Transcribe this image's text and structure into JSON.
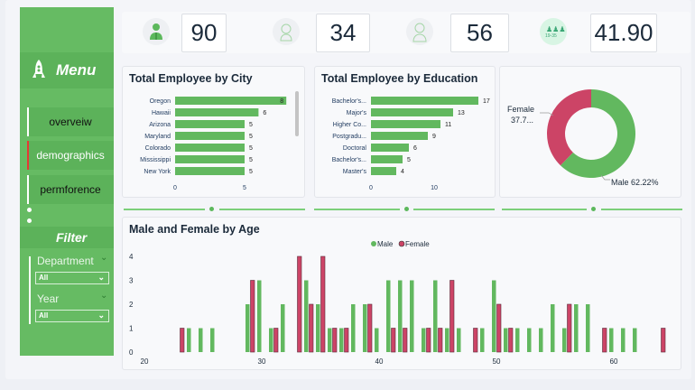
{
  "sidebar": {
    "menu_title": "Menu",
    "nav": [
      {
        "label": "overveiw",
        "active": false
      },
      {
        "label": "demographics",
        "active": true
      },
      {
        "label": "permforence",
        "active": false
      }
    ],
    "filter_title": "Filter",
    "filters": [
      {
        "label": "Department",
        "value": "All"
      },
      {
        "label": "Year",
        "value": "All"
      }
    ]
  },
  "kpis": [
    {
      "icon": "employee-icon",
      "value": "90"
    },
    {
      "icon": "female-icon",
      "value": "34"
    },
    {
      "icon": "male-icon",
      "value": "56"
    },
    {
      "icon": "age-group-icon",
      "value": "41.90",
      "icon_text": "19-35"
    }
  ],
  "colors": {
    "male": "#62b85f",
    "female": "#cc4466",
    "sidebar": "#66bb63",
    "active_marker": "#e53935"
  },
  "chart_data": [
    {
      "type": "bar",
      "orientation": "horizontal",
      "title": "Total Employee by City",
      "categories": [
        "Oregon",
        "Hawaii",
        "Arizona",
        "Maryland",
        "Colorado",
        "Mississippi",
        "New York"
      ],
      "values": [
        8,
        6,
        5,
        5,
        5,
        5,
        5
      ],
      "xticks": [
        "0",
        "5"
      ]
    },
    {
      "type": "bar",
      "orientation": "horizontal",
      "title": "Total Employee by Education",
      "categories": [
        "Bachelor's...",
        "Major's",
        "Higher Co...",
        "Postgradu...",
        "Doctoral",
        "Bachelor's...",
        "Master's"
      ],
      "values": [
        17,
        13,
        11,
        9,
        6,
        5,
        4
      ],
      "xticks": [
        "0",
        "10"
      ]
    },
    {
      "type": "pie",
      "donut": true,
      "slices": [
        {
          "name": "Male",
          "value": 62.22,
          "label": "Male 62.22%"
        },
        {
          "name": "Female",
          "value": 37.78,
          "label_line1": "Female",
          "label_line2": "37.7..."
        }
      ]
    },
    {
      "type": "bar",
      "title": "Male and Female by Age",
      "legend": [
        "Male",
        "Female"
      ],
      "legend_position": "top-center",
      "xticks": [
        "20",
        "30",
        "40",
        "50",
        "60"
      ],
      "yticks": [
        "0",
        "1",
        "2",
        "3",
        "4"
      ],
      "ylim": [
        0,
        4
      ],
      "male": [
        [
          24,
          1
        ],
        [
          25,
          1
        ],
        [
          26,
          1
        ],
        [
          29,
          2
        ],
        [
          30,
          3
        ],
        [
          31,
          1
        ],
        [
          32,
          2
        ],
        [
          34,
          3
        ],
        [
          35,
          2
        ],
        [
          36,
          1
        ],
        [
          37,
          1
        ],
        [
          38,
          2
        ],
        [
          39,
          2
        ],
        [
          40,
          1
        ],
        [
          41,
          3
        ],
        [
          42,
          3
        ],
        [
          43,
          3
        ],
        [
          44,
          1
        ],
        [
          45,
          3
        ],
        [
          46,
          1
        ],
        [
          47,
          1
        ],
        [
          49,
          1
        ],
        [
          50,
          3
        ],
        [
          51,
          1
        ],
        [
          52,
          1
        ],
        [
          53,
          1
        ],
        [
          54,
          1
        ],
        [
          55,
          2
        ],
        [
          56,
          1
        ],
        [
          57,
          2
        ],
        [
          58,
          2
        ],
        [
          60,
          1
        ],
        [
          61,
          1
        ],
        [
          62,
          1
        ]
      ],
      "female": [
        [
          23,
          1
        ],
        [
          29,
          3
        ],
        [
          31,
          1
        ],
        [
          33,
          4
        ],
        [
          34,
          2
        ],
        [
          35,
          4
        ],
        [
          36,
          1
        ],
        [
          37,
          1
        ],
        [
          39,
          2
        ],
        [
          41,
          1
        ],
        [
          42,
          1
        ],
        [
          44,
          1
        ],
        [
          45,
          1
        ],
        [
          46,
          3
        ],
        [
          48,
          1
        ],
        [
          50,
          2
        ],
        [
          51,
          1
        ],
        [
          56,
          2
        ],
        [
          59,
          1
        ],
        [
          64,
          1
        ]
      ]
    }
  ]
}
